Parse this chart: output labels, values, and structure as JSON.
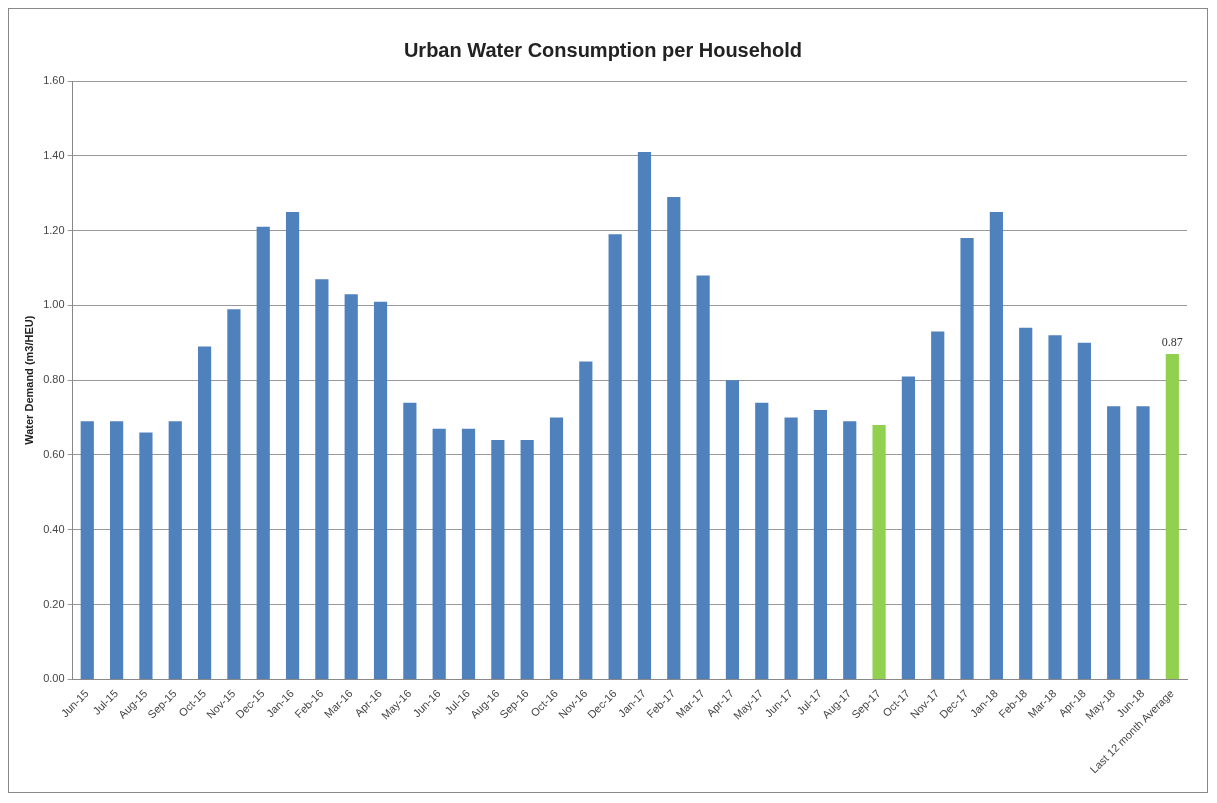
{
  "chart_data": {
    "type": "bar",
    "title": "Urban Water Consumption per Household",
    "ylabel": "Water Demand (m3/HEU)",
    "categories": [
      "Jun-15",
      "Jul-15",
      "Aug-15",
      "Sep-15",
      "Oct-15",
      "Nov-15",
      "Dec-15",
      "Jan-16",
      "Feb-16",
      "Mar-16",
      "Apr-16",
      "May-16",
      "Jun-16",
      "Jul-16",
      "Aug-16",
      "Sep-16",
      "Oct-16",
      "Nov-16",
      "Dec-16",
      "Jan-17",
      "Feb-17",
      "Mar-17",
      "Apr-17",
      "May-17",
      "Jun-17",
      "Jul-17",
      "Aug-17",
      "Sep-17",
      "Oct-17",
      "Nov-17",
      "Dec-17",
      "Jan-18",
      "Feb-18",
      "Mar-18",
      "Apr-18",
      "May-18",
      "Jun-18",
      "Last 12 month Average"
    ],
    "values": [
      0.69,
      0.69,
      0.66,
      0.69,
      0.89,
      0.99,
      1.21,
      1.25,
      1.07,
      1.03,
      1.01,
      0.74,
      0.67,
      0.67,
      0.64,
      0.64,
      0.7,
      0.85,
      1.19,
      1.41,
      1.29,
      1.08,
      0.8,
      0.74,
      0.7,
      0.72,
      0.69,
      0.68,
      0.81,
      0.93,
      1.18,
      1.25,
      0.94,
      0.92,
      0.9,
      0.73,
      0.73,
      0.87
    ],
    "colors": [
      "#4f81bd",
      "#4f81bd",
      "#4f81bd",
      "#4f81bd",
      "#4f81bd",
      "#4f81bd",
      "#4f81bd",
      "#4f81bd",
      "#4f81bd",
      "#4f81bd",
      "#4f81bd",
      "#4f81bd",
      "#4f81bd",
      "#4f81bd",
      "#4f81bd",
      "#4f81bd",
      "#4f81bd",
      "#4f81bd",
      "#4f81bd",
      "#4f81bd",
      "#4f81bd",
      "#4f81bd",
      "#4f81bd",
      "#4f81bd",
      "#4f81bd",
      "#4f81bd",
      "#4f81bd",
      "#92d050",
      "#4f81bd",
      "#4f81bd",
      "#4f81bd",
      "#4f81bd",
      "#4f81bd",
      "#4f81bd",
      "#4f81bd",
      "#4f81bd",
      "#4f81bd",
      "#92d050"
    ],
    "value_labels": [
      null,
      null,
      null,
      null,
      null,
      null,
      null,
      null,
      null,
      null,
      null,
      null,
      null,
      null,
      null,
      null,
      null,
      null,
      null,
      null,
      null,
      null,
      null,
      null,
      null,
      null,
      null,
      null,
      null,
      null,
      null,
      null,
      null,
      null,
      null,
      null,
      null,
      "0.87"
    ],
    "ylim": [
      0,
      1.6
    ],
    "yticks": [
      {
        "value": 0,
        "label": "0.00"
      },
      {
        "value": 0.2,
        "label": "0.20"
      },
      {
        "value": 0.4,
        "label": "0.40"
      },
      {
        "value": 0.6,
        "label": "0.60"
      },
      {
        "value": 0.8,
        "label": "0.80"
      },
      {
        "value": 1.0,
        "label": "1.00"
      },
      {
        "value": 1.2,
        "label": "1.20"
      },
      {
        "value": 1.4,
        "label": "1.40"
      },
      {
        "value": 1.6,
        "label": "1.60"
      }
    ],
    "grid": "y",
    "legend": false
  }
}
